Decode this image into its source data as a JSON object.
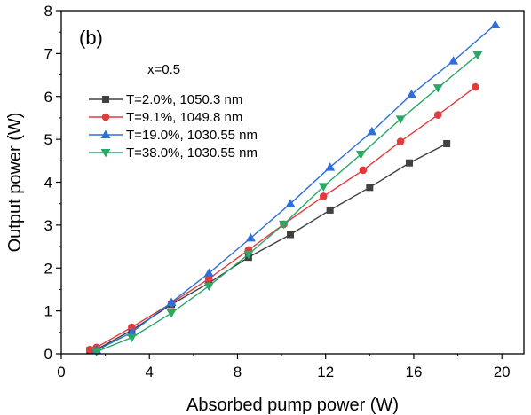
{
  "chart_data": {
    "type": "line",
    "xlabel": "Absorbed pump power (W)",
    "ylabel": "Output power (W)",
    "xlim": [
      0,
      21
    ],
    "ylim": [
      0,
      8
    ],
    "xticks": [
      0,
      4,
      8,
      12,
      16,
      20
    ],
    "yticks": [
      0,
      1,
      2,
      3,
      4,
      5,
      6,
      7,
      8
    ],
    "grid": false,
    "legend_position": "upper-left",
    "annotations": [
      {
        "name": "panel-label",
        "text": "(b)"
      },
      {
        "name": "composition-label",
        "text": "x=0.5"
      }
    ],
    "series": [
      {
        "name": "T=2.0%, 1050.3 nm",
        "color": "#404040",
        "marker": "square",
        "x": [
          1.3,
          1.6,
          3.2,
          5.0,
          6.7,
          8.5,
          10.4,
          12.2,
          14.0,
          15.8,
          17.5
        ],
        "y": [
          0.08,
          0.1,
          0.55,
          1.15,
          1.65,
          2.25,
          2.78,
          3.35,
          3.88,
          4.45,
          4.9
        ]
      },
      {
        "name": "T=9.1%, 1049.8 nm",
        "color": "#e03c3c",
        "marker": "circle",
        "x": [
          1.3,
          1.6,
          3.2,
          5.0,
          6.7,
          8.5,
          10.1,
          11.9,
          13.7,
          15.4,
          17.1,
          18.8
        ],
        "y": [
          0.1,
          0.15,
          0.62,
          1.18,
          1.75,
          2.42,
          3.02,
          3.67,
          4.28,
          4.95,
          5.57,
          6.22
        ]
      },
      {
        "name": "T=19.0%, 1030.55 nm",
        "color": "#2d6fdc",
        "marker": "triangle-up",
        "x": [
          1.6,
          3.2,
          5.0,
          6.7,
          8.6,
          10.4,
          12.2,
          14.1,
          15.9,
          17.8,
          19.7
        ],
        "y": [
          0.08,
          0.5,
          1.2,
          1.88,
          2.7,
          3.5,
          4.35,
          5.18,
          6.05,
          6.83,
          7.67
        ]
      },
      {
        "name": "T=38.0%, 1030.55 nm",
        "color": "#2aa866",
        "marker": "triangle-down",
        "x": [
          1.6,
          3.2,
          5.0,
          6.7,
          8.5,
          10.1,
          11.9,
          13.6,
          15.4,
          17.1,
          18.9
        ],
        "y": [
          0.05,
          0.38,
          0.95,
          1.58,
          2.32,
          3.02,
          3.9,
          4.65,
          5.47,
          6.2,
          6.97
        ]
      }
    ]
  }
}
